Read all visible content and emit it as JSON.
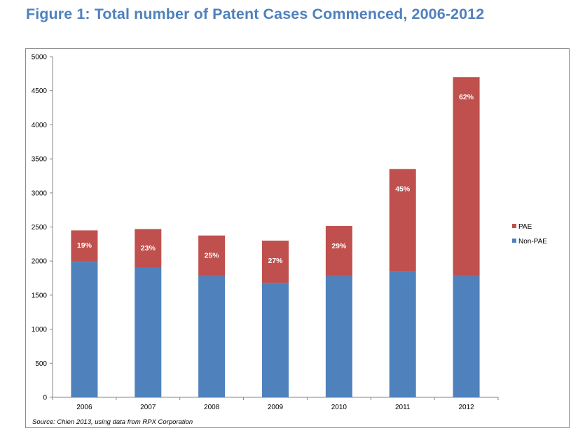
{
  "title": "Figure 1: Total number of Patent Cases Commenced, 2006-2012",
  "source_note": "Source: Chien 2013, using data from RPX Corporation",
  "chart_data": {
    "type": "bar",
    "stacked": true,
    "title": "",
    "xlabel": "",
    "ylabel": "",
    "categories": [
      "2006",
      "2007",
      "2008",
      "2009",
      "2010",
      "2011",
      "2012"
    ],
    "series": [
      {
        "name": "Non-PAE",
        "color": "#4f81bd",
        "values": [
          1990,
          1900,
          1780,
          1680,
          1780,
          1840,
          1780
        ]
      },
      {
        "name": "PAE",
        "color": "#c0504d",
        "values": [
          460,
          570,
          595,
          620,
          735,
          1510,
          2920
        ]
      }
    ],
    "data_labels": [
      "19%",
      "23%",
      "25%",
      "27%",
      "29%",
      "45%",
      "62%"
    ],
    "ylim": [
      0,
      5000
    ],
    "yticks": [
      "0",
      "500",
      "1000",
      "1500",
      "2000",
      "2500",
      "3000",
      "3500",
      "4000",
      "4500",
      "5000"
    ],
    "grid": false,
    "legend_position": "right"
  }
}
